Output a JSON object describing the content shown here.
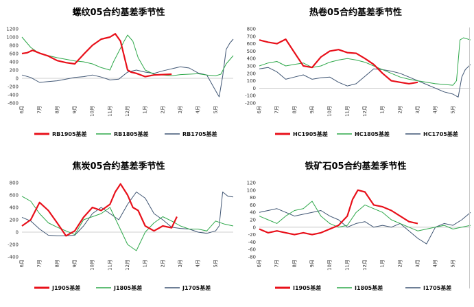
{
  "colors": {
    "series_1905": "#e8101a",
    "series_1805": "#2ea84a",
    "series_1705": "#3f5573",
    "zero_line": "#bfbfbf"
  },
  "months": [
    "6月",
    "7月",
    "8月",
    "9月",
    "10月",
    "11月",
    "12月",
    "1月",
    "2月",
    "3月",
    "4月",
    "5月"
  ],
  "chart_data": [
    {
      "type": "line",
      "title": "螺纹05合约基差季节性",
      "ylim": [
        -600,
        1200
      ],
      "yticks": [
        -600,
        -400,
        -200,
        0,
        200,
        400,
        600,
        800,
        1000,
        1200
      ],
      "grid": false,
      "legend_position": "bottom",
      "series": [
        {
          "name": "RB1905基差",
          "color_key": "series_1905",
          "x": [
            0,
            0.3,
            0.6,
            1,
            1.5,
            2,
            2.5,
            3,
            3.5,
            4,
            4.5,
            5,
            5.3,
            5.6,
            6,
            6.2,
            6.5,
            7,
            7.5,
            8,
            8.5
          ],
          "values": [
            600,
            620,
            680,
            610,
            540,
            430,
            380,
            350,
            580,
            800,
            950,
            1000,
            1080,
            900,
            200,
            150,
            120,
            40,
            80,
            90,
            100
          ]
        },
        {
          "name": "RB1805基差",
          "color_key": "series_1805",
          "x": [
            0,
            0.5,
            1,
            1.5,
            2,
            2.5,
            3,
            3.5,
            4,
            4.5,
            5,
            5.2,
            5.5,
            5.8,
            6,
            6.3,
            6.6,
            7,
            7.5,
            8,
            8.5,
            9,
            9.5,
            10,
            10.5,
            11,
            11.3,
            11.6,
            12
          ],
          "values": [
            1000,
            750,
            600,
            550,
            500,
            460,
            420,
            400,
            350,
            260,
            200,
            400,
            650,
            900,
            1050,
            900,
            500,
            200,
            100,
            80,
            60,
            90,
            100,
            110,
            80,
            60,
            100,
            350,
            550
          ]
        },
        {
          "name": "RB1705基差",
          "color_key": "series_1705",
          "x": [
            0,
            0.5,
            1,
            1.5,
            2,
            2.5,
            3,
            3.5,
            4,
            4.5,
            5,
            5.5,
            6,
            6.5,
            7,
            7.5,
            8,
            8.5,
            9,
            9.5,
            10,
            10.5,
            11,
            11.2,
            11.4,
            11.6,
            11.8,
            12
          ],
          "values": [
            80,
            20,
            -100,
            -80,
            -60,
            -20,
            20,
            40,
            80,
            30,
            -40,
            -20,
            150,
            200,
            150,
            120,
            180,
            230,
            280,
            250,
            130,
            80,
            -300,
            -450,
            50,
            700,
            850,
            950
          ]
        }
      ]
    },
    {
      "type": "line",
      "title": "热卷05合约基差季节性",
      "ylim": [
        -200,
        800
      ],
      "yticks": [
        -200,
        -100,
        0,
        100,
        200,
        300,
        400,
        500,
        600,
        700,
        800
      ],
      "grid": false,
      "legend_position": "bottom",
      "series": [
        {
          "name": "HC1905基差",
          "color_key": "series_1905",
          "x": [
            0,
            0.5,
            1,
            1.5,
            2,
            2.5,
            3,
            3.5,
            4,
            4.5,
            5,
            5.5,
            6,
            6.5,
            7,
            7.5,
            8,
            8.5,
            9
          ],
          "values": [
            650,
            620,
            600,
            660,
            480,
            300,
            280,
            420,
            500,
            520,
            480,
            470,
            400,
            320,
            200,
            100,
            80,
            60,
            80
          ]
        },
        {
          "name": "HC1805基差",
          "color_key": "series_1805",
          "x": [
            0,
            0.5,
            1,
            1.5,
            2,
            2.5,
            3,
            3.5,
            4,
            4.5,
            5,
            5.5,
            6,
            6.5,
            7,
            7.5,
            8,
            8.5,
            9,
            9.5,
            10,
            10.5,
            11,
            11.2,
            11.4,
            11.6,
            12
          ],
          "values": [
            300,
            340,
            360,
            300,
            320,
            340,
            280,
            300,
            350,
            380,
            400,
            380,
            350,
            300,
            250,
            200,
            150,
            120,
            100,
            80,
            60,
            50,
            40,
            100,
            650,
            680,
            650
          ]
        },
        {
          "name": "HC1705基差",
          "color_key": "series_1705",
          "x": [
            0,
            0.5,
            1,
            1.5,
            2,
            2.5,
            3,
            3.5,
            4,
            4.5,
            5,
            5.5,
            6,
            6.5,
            7,
            7.5,
            8,
            8.5,
            9,
            9.5,
            10,
            10.5,
            11,
            11.3,
            11.5,
            11.7,
            12
          ],
          "values": [
            260,
            280,
            220,
            120,
            150,
            180,
            120,
            140,
            150,
            80,
            30,
            60,
            160,
            260,
            250,
            230,
            200,
            150,
            100,
            50,
            0,
            -50,
            -80,
            -120,
            150,
            250,
            320
          ]
        }
      ]
    },
    {
      "type": "line",
      "title": "焦炭05合约基差季节性",
      "ylim": [
        -400,
        800
      ],
      "yticks": [
        -400,
        -200,
        0,
        200,
        400,
        600,
        800
      ],
      "grid": false,
      "legend_position": "bottom",
      "series": [
        {
          "name": "J1905基差",
          "color_key": "series_1905",
          "x": [
            0,
            0.5,
            1,
            1.5,
            2,
            2.5,
            3,
            3.5,
            4,
            4.5,
            5,
            5.3,
            5.6,
            6,
            6.3,
            6.6,
            7,
            7.5,
            8,
            8.5,
            8.8
          ],
          "values": [
            100,
            200,
            480,
            350,
            150,
            -60,
            20,
            240,
            400,
            350,
            450,
            650,
            780,
            600,
            400,
            350,
            100,
            20,
            100,
            70,
            250
          ]
        },
        {
          "name": "J1805基差",
          "color_key": "series_1805",
          "x": [
            0,
            0.5,
            1,
            1.5,
            2,
            2.5,
            3,
            3.5,
            4,
            4.5,
            5,
            5.5,
            6,
            6.5,
            7,
            7.5,
            8,
            8.5,
            9,
            9.5,
            10,
            10.5,
            11,
            11.5,
            12
          ],
          "values": [
            580,
            500,
            300,
            150,
            80,
            20,
            -40,
            200,
            250,
            300,
            400,
            100,
            -200,
            -300,
            0,
            150,
            250,
            180,
            100,
            50,
            50,
            20,
            180,
            130,
            100
          ]
        },
        {
          "name": "J1705基差",
          "color_key": "series_1705",
          "x": [
            0,
            0.5,
            1,
            1.5,
            2,
            2.5,
            3,
            3.5,
            4,
            4.5,
            5,
            5.5,
            6,
            6.5,
            7,
            7.5,
            8,
            8.5,
            9,
            9.5,
            10,
            10.5,
            11,
            11.2,
            11.4,
            11.7,
            12
          ],
          "values": [
            240,
            180,
            50,
            -50,
            -60,
            -60,
            -50,
            100,
            300,
            400,
            300,
            200,
            450,
            650,
            550,
            300,
            200,
            80,
            60,
            50,
            0,
            -20,
            20,
            100,
            650,
            580,
            570
          ]
        }
      ]
    },
    {
      "type": "line",
      "title": "铁矿石05合约基差季节性",
      "ylim": [
        -80,
        120
      ],
      "yticks": [
        -80,
        -60,
        -40,
        -20,
        0,
        20,
        40,
        60,
        80,
        100,
        120
      ],
      "grid": false,
      "legend_position": "bottom",
      "series": [
        {
          "name": "I1905基差",
          "color_key": "series_1905",
          "x": [
            0,
            0.5,
            1,
            1.5,
            2,
            2.5,
            3,
            3.5,
            4,
            4.5,
            5,
            5.3,
            5.6,
            6,
            6.5,
            7,
            7.5,
            8,
            8.5,
            9
          ],
          "values": [
            -5,
            -15,
            -10,
            -15,
            -20,
            -15,
            -20,
            -15,
            -5,
            5,
            30,
            75,
            100,
            95,
            60,
            55,
            45,
            30,
            15,
            10
          ]
        },
        {
          "name": "I1805基差",
          "color_key": "series_1805",
          "x": [
            0,
            0.5,
            1,
            1.5,
            2,
            2.5,
            3,
            3.5,
            4,
            4.5,
            5,
            5.5,
            6,
            6.5,
            7,
            7.5,
            8,
            8.5,
            9,
            9.5,
            10,
            10.5,
            11,
            11.5,
            12
          ],
          "values": [
            30,
            20,
            10,
            30,
            45,
            50,
            70,
            30,
            10,
            0,
            5,
            40,
            60,
            50,
            40,
            20,
            10,
            0,
            -10,
            -5,
            0,
            5,
            -5,
            0,
            5
          ]
        },
        {
          "name": "I1705基差",
          "color_key": "series_1705",
          "x": [
            0,
            0.5,
            1,
            1.5,
            2,
            2.5,
            3,
            3.5,
            4,
            4.5,
            5,
            5.5,
            6,
            6.5,
            7,
            7.5,
            8,
            8.5,
            9,
            9.5,
            10,
            10.5,
            11,
            11.5,
            12
          ],
          "values": [
            40,
            45,
            50,
            40,
            30,
            35,
            40,
            45,
            30,
            20,
            0,
            10,
            15,
            0,
            5,
            0,
            10,
            -10,
            -30,
            -45,
            0,
            10,
            5,
            20,
            40
          ]
        }
      ]
    }
  ]
}
